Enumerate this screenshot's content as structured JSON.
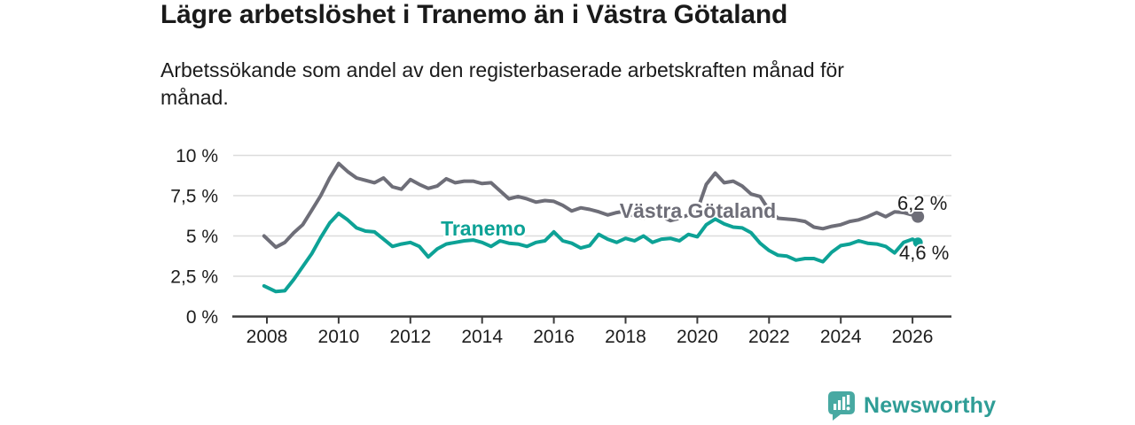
{
  "chart_data": {
    "type": "line",
    "title": "Lägre arbetslöshet i Tranemo än i Västra Götaland",
    "subtitle_lines": [
      "Arbetssökande som andel av den registerbaserade arbetskraften månad för",
      "månad."
    ],
    "unit": "%",
    "grid": true,
    "legend": "inline-labels",
    "xlim": [
      2007.9,
      2027.1
    ],
    "ylim": [
      0,
      10.5
    ],
    "axis_color": "#3b3b3b",
    "grid_color": "#dcdcdc",
    "x_ticks": [
      {
        "value": 2008,
        "label": "2008"
      },
      {
        "value": 2010,
        "label": "2010"
      },
      {
        "value": 2012,
        "label": "2012"
      },
      {
        "value": 2014,
        "label": "2014"
      },
      {
        "value": 2016,
        "label": "2016"
      },
      {
        "value": 2018,
        "label": "2018"
      },
      {
        "value": 2020,
        "label": "2020"
      },
      {
        "value": 2022,
        "label": "2022"
      },
      {
        "value": 2024,
        "label": "2024"
      },
      {
        "value": 2026,
        "label": "2026"
      }
    ],
    "y_ticks": [
      {
        "value": 0,
        "label": "0 %"
      },
      {
        "value": 2.5,
        "label": "2,5 %"
      },
      {
        "value": 5,
        "label": "5 %"
      },
      {
        "value": 7.5,
        "label": "7,5 %"
      },
      {
        "value": 10,
        "label": "10 %"
      }
    ],
    "x": [
      2007.92,
      2008.25,
      2008.5,
      2008.75,
      2009,
      2009.25,
      2009.5,
      2009.75,
      2010,
      2010.25,
      2010.5,
      2010.75,
      2011,
      2011.25,
      2011.5,
      2011.75,
      2012,
      2012.25,
      2012.5,
      2012.75,
      2013,
      2013.25,
      2013.5,
      2013.75,
      2014,
      2014.25,
      2014.5,
      2014.75,
      2015,
      2015.25,
      2015.5,
      2015.75,
      2016,
      2016.25,
      2016.5,
      2016.75,
      2017,
      2017.25,
      2017.5,
      2017.75,
      2018,
      2018.25,
      2018.5,
      2018.75,
      2019,
      2019.25,
      2019.5,
      2019.75,
      2020,
      2020.25,
      2020.5,
      2020.75,
      2021,
      2021.25,
      2021.5,
      2021.75,
      2022,
      2022.25,
      2022.5,
      2022.75,
      2023,
      2023.25,
      2023.5,
      2023.75,
      2024,
      2024.25,
      2024.5,
      2024.75,
      2025,
      2025.25,
      2025.5,
      2025.75,
      2026,
      2026.15
    ],
    "series": [
      {
        "id": "vastra-gotaland",
        "name": "Västra Götaland",
        "color": "#6e6e78",
        "end_label": "6,2 %",
        "end_value": 6.2,
        "values": [
          5.0,
          4.3,
          4.6,
          5.2,
          5.7,
          6.6,
          7.5,
          8.6,
          9.5,
          9.0,
          8.6,
          8.45,
          8.3,
          8.6,
          8.05,
          7.9,
          8.5,
          8.2,
          7.95,
          8.1,
          8.55,
          8.3,
          8.4,
          8.4,
          8.25,
          8.3,
          7.8,
          7.3,
          7.45,
          7.3,
          7.1,
          7.2,
          7.15,
          6.9,
          6.55,
          6.75,
          6.65,
          6.5,
          6.3,
          6.45,
          6.55,
          6.2,
          6.1,
          6.35,
          6.2,
          5.95,
          6.1,
          6.3,
          6.6,
          8.2,
          8.9,
          8.3,
          8.4,
          8.1,
          7.6,
          7.45,
          6.6,
          6.1,
          6.05,
          6.0,
          5.9,
          5.55,
          5.45,
          5.6,
          5.7,
          5.9,
          6.0,
          6.2,
          6.45,
          6.2,
          6.5,
          6.45,
          6.3,
          6.2
        ]
      },
      {
        "id": "tranemo",
        "name": "Tranemo",
        "color": "#0da296",
        "end_label": "4,6 %",
        "end_value": 4.6,
        "values": [
          1.9,
          1.55,
          1.6,
          2.3,
          3.1,
          3.9,
          4.9,
          5.8,
          6.4,
          6.0,
          5.5,
          5.3,
          5.25,
          4.8,
          4.35,
          4.5,
          4.6,
          4.35,
          3.7,
          4.2,
          4.5,
          4.6,
          4.7,
          4.75,
          4.6,
          4.35,
          4.7,
          4.55,
          4.5,
          4.35,
          4.6,
          4.7,
          5.25,
          4.7,
          4.55,
          4.25,
          4.4,
          5.1,
          4.8,
          4.6,
          4.85,
          4.7,
          5.0,
          4.6,
          4.8,
          4.85,
          4.7,
          5.1,
          4.95,
          5.7,
          6.05,
          5.75,
          5.55,
          5.5,
          5.2,
          4.55,
          4.1,
          3.8,
          3.75,
          3.5,
          3.6,
          3.6,
          3.4,
          4.0,
          4.4,
          4.5,
          4.7,
          4.55,
          4.5,
          4.35,
          3.95,
          4.6,
          4.8,
          4.6
        ]
      }
    ]
  },
  "footer": {
    "brand": "Newsworthy",
    "brand_color": "#2f9d96",
    "icon_color": "#48a9a2"
  }
}
